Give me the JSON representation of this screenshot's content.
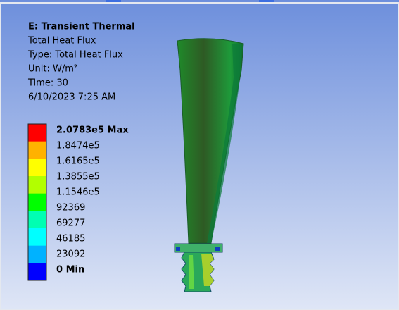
{
  "header": {
    "title": "E: Transient Thermal",
    "lines": [
      "Total Heat Flux",
      "Type: Total Heat Flux",
      "Unit: W/m²",
      "Time: 30",
      "6/10/2023 7:25 AM"
    ]
  },
  "legend": {
    "entries": [
      {
        "label": "2.0783e5 Max",
        "color": "#ff0000"
      },
      {
        "label": "1.8474e5",
        "color": "#ffb200"
      },
      {
        "label": "1.6165e5",
        "color": "#ffff00"
      },
      {
        "label": "1.3855e5",
        "color": "#b2ff00"
      },
      {
        "label": "1.1546e5",
        "color": "#00ff00"
      },
      {
        "label": "92369",
        "color": "#00ffb2"
      },
      {
        "label": "69277",
        "color": "#00ffff"
      },
      {
        "label": "46185",
        "color": "#00b2ff"
      },
      {
        "label": "23092",
        "color": "#0000ff"
      },
      {
        "label": "0 Min"
      }
    ]
  }
}
